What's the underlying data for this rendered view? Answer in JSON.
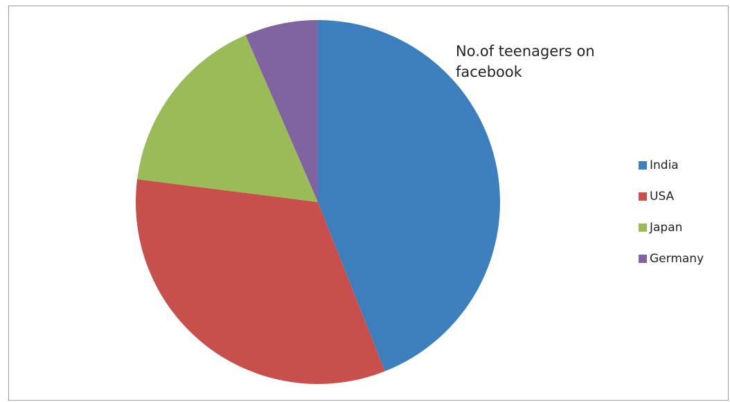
{
  "chart_data": {
    "type": "pie",
    "title": "No.of teenagers on facebook",
    "categories": [
      "India",
      "USA",
      "Japan",
      "Germany"
    ],
    "values": [
      44,
      33,
      16.5,
      6.5
    ],
    "colors": [
      "#3C7FBC",
      "#C7504D",
      "#9BBB59",
      "#8064A2"
    ],
    "start_angle_deg": 0,
    "direction": "clockwise",
    "legend_position": "right"
  }
}
